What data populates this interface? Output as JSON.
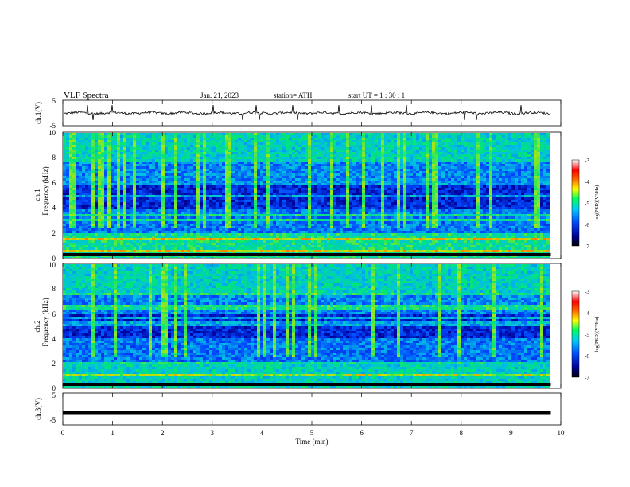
{
  "header": {
    "title": "VLF  Spectra",
    "date": "Jan. 21, 2023",
    "station": "station= ATH",
    "start": "start  UT  =   1  : 30 : 1"
  },
  "panels": {
    "ch1_wave": {
      "label": "ch.1(V)",
      "ticks": [
        "5",
        "-5"
      ]
    },
    "ch1_spec": {
      "label": "ch.1",
      "ylabel": "Frequency (kHz)",
      "ticks": [
        "0",
        "2",
        "4",
        "6",
        "8",
        "10"
      ]
    },
    "ch2_spec": {
      "label": "ch.2",
      "ylabel": "Frequency (kHz)",
      "ticks": [
        "0",
        "2",
        "4",
        "6",
        "8",
        "10"
      ]
    },
    "ch3_wave": {
      "label": "ch.3(V)",
      "ticks": [
        "5",
        "-5"
      ]
    }
  },
  "colorbar": {
    "label": "log(PSD)(V²/Hz)",
    "ticks": [
      "-3",
      "-4",
      "-5",
      "-6",
      "-7"
    ]
  },
  "chart_data": {
    "type": "heatmap",
    "xlabel": "Time  (min)",
    "xlim": [
      0,
      10
    ],
    "x_ticks": [
      "0",
      "1",
      "2",
      "3",
      "4",
      "5",
      "6",
      "7",
      "8",
      "9",
      "10"
    ],
    "data_end_min": 9.8,
    "ch1_ylim": [
      -5,
      5
    ],
    "freq_ylim_khz": [
      0,
      10
    ],
    "color_range_log_psd": [
      -7,
      -3
    ],
    "ch3_level_v": -1.5,
    "colors": {
      "low": "#00003a",
      "mid": "#00c8c8",
      "high": "#d00000",
      "line": "#000000"
    }
  }
}
